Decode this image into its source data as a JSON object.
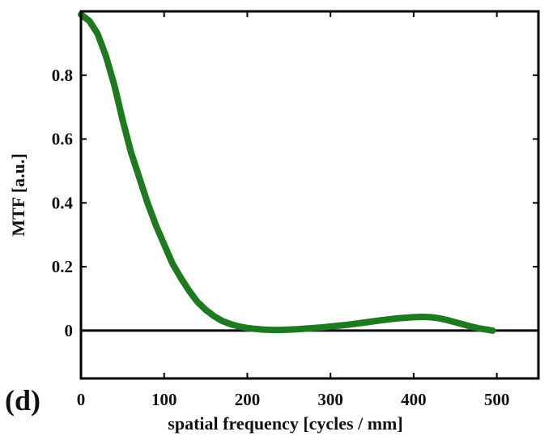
{
  "chart_data": {
    "type": "line",
    "panel_label": "(d)",
    "xlabel": "spatial frequency [cycles / mm]",
    "ylabel": "MTF [a.u.]",
    "xlim": [
      0,
      550
    ],
    "ylim": [
      -0.15,
      1.0
    ],
    "x_ticks": [
      0,
      100,
      200,
      300,
      400,
      500
    ],
    "y_ticks": [
      0,
      0.2,
      0.4,
      0.6,
      0.8
    ],
    "x_tick_labels": [
      "0",
      "100",
      "200",
      "300",
      "400",
      "500"
    ],
    "y_tick_labels": [
      "0",
      "0.2",
      "0.4",
      "0.6",
      "0.8"
    ],
    "grid": false,
    "zero_line": true,
    "series": [
      {
        "color": "#1e7a1e",
        "x": [
          0,
          10,
          20,
          30,
          40,
          50,
          60,
          70,
          80,
          90,
          100,
          110,
          120,
          130,
          140,
          150,
          160,
          170,
          180,
          190,
          200,
          210,
          220,
          230,
          240,
          250,
          260,
          270,
          280,
          290,
          300,
          320,
          340,
          360,
          380,
          400,
          410,
          420,
          430,
          440,
          450,
          460,
          470,
          480,
          490,
          495
        ],
        "y": [
          0.99,
          0.97,
          0.93,
          0.86,
          0.77,
          0.66,
          0.56,
          0.48,
          0.4,
          0.33,
          0.27,
          0.21,
          0.165,
          0.125,
          0.09,
          0.065,
          0.045,
          0.03,
          0.02,
          0.013,
          0.008,
          0.005,
          0.003,
          0.002,
          0.002,
          0.003,
          0.004,
          0.006,
          0.008,
          0.01,
          0.013,
          0.018,
          0.025,
          0.032,
          0.038,
          0.042,
          0.043,
          0.042,
          0.039,
          0.033,
          0.026,
          0.019,
          0.012,
          0.006,
          0.002,
          0.0
        ]
      }
    ]
  }
}
